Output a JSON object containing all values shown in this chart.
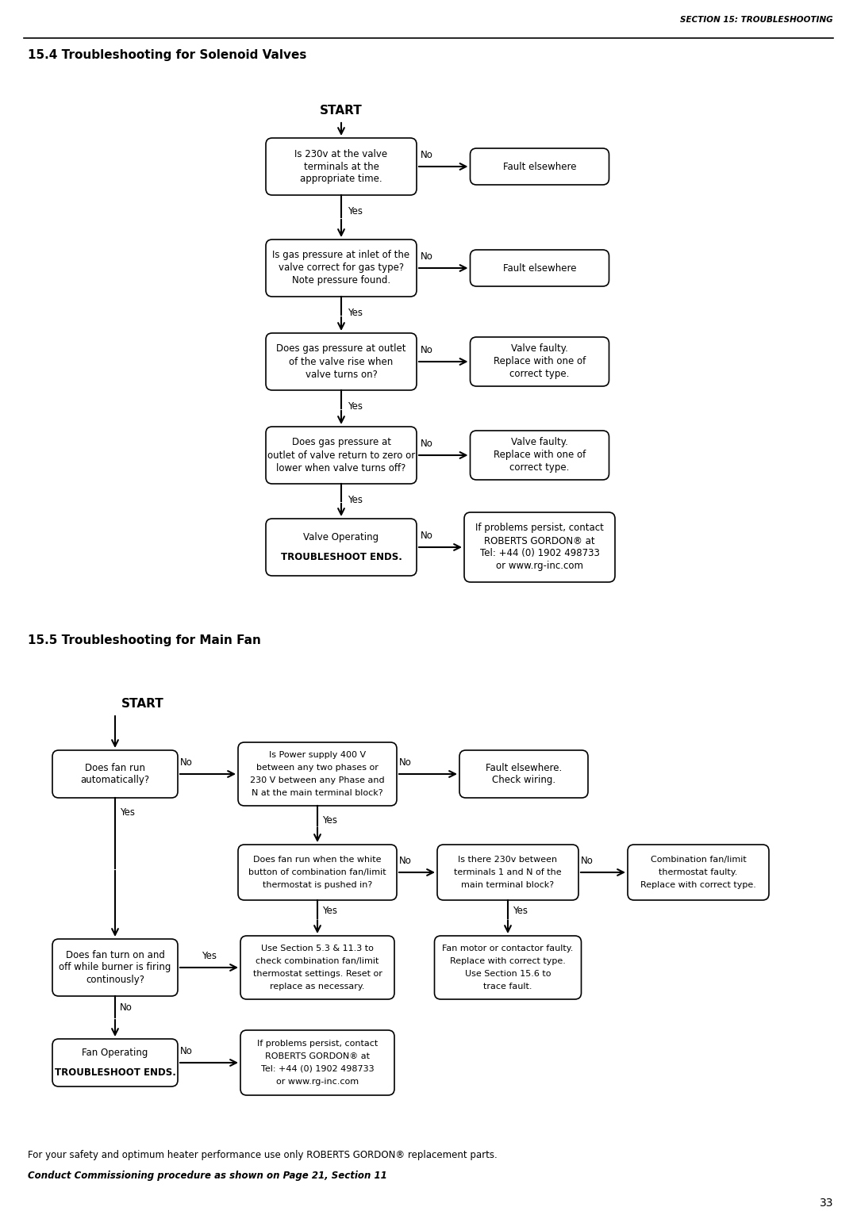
{
  "header_text": "SECTION 15: TROUBLESHOOTING",
  "sec1_title": "15.4 Troubleshooting for Solenoid Valves",
  "sec2_title": "15.5 Troubleshooting for Main Fan",
  "footer1": "For your safety and optimum heater performance use only ROBERTS GORDON® replacement parts.",
  "footer2": "Conduct Commissioning procedure as shown on Page 21, Section 11",
  "page_num": "33",
  "s1_q1": "Is 230v at the valve\nterminals at the\nappropriate time.",
  "s1_r1": "Fault elsewhere",
  "s1_q2": "Is gas pressure at inlet of the\nvalve correct for gas type?\nNote pressure found.",
  "s1_r2": "Fault elsewhere",
  "s1_q3": "Does gas pressure at outlet\nof the valve rise when\nvalve turns on?",
  "s1_r3": "Valve faulty.\nReplace with one of\ncorrect type.",
  "s1_q4": "Does gas pressure at\noutlet of valve return to zero or\nlower when valve turns off?",
  "s1_r4": "Valve faulty.\nReplace with one of\ncorrect type.",
  "s1_q5a": "Valve Operating",
  "s1_q5b": "TROUBLESHOOT ENDS.",
  "s1_r5": "If problems persist, contact\nROBERTS GORDON® at\nTel: +44 (0) 1902 498733\nor www.rg-inc.com",
  "s2_fa": "Does fan run\nautomatically?",
  "s2_fb": "Is Power supply 400 V\nbetween any two phases or\n230 V between any Phase and\nN at the main terminal block?",
  "s2_fc": "Fault elsewhere.\nCheck wiring.",
  "s2_fd": "Does fan run when the white\nbutton of combination fan/limit\nthermostat is pushed in?",
  "s2_fe": "Is there 230v between\nterminals 1 and N of the\nmain terminal block?",
  "s2_ff": "Combination fan/limit\nthermostat faulty.\nReplace with correct type.",
  "s2_fg": "Does fan turn on and\noff while burner is firing\ncontinously?",
  "s2_fh": "Use Section 5.3 & 11.3 to\ncheck combination fan/limit\nthermostat settings. Reset or\nreplace as necessary.",
  "s2_fi": "Fan motor or contactor faulty.\nReplace with correct type.\nUse Section 15.6 to\ntrace fault.",
  "s2_fja": "Fan Operating",
  "s2_fjb": "TROUBLESHOOT ENDS.",
  "s2_fk": "If problems persist, contact\nROBERTS GORDON® at\nTel: +44 (0) 1902 498733\nor www.rg-inc.com"
}
